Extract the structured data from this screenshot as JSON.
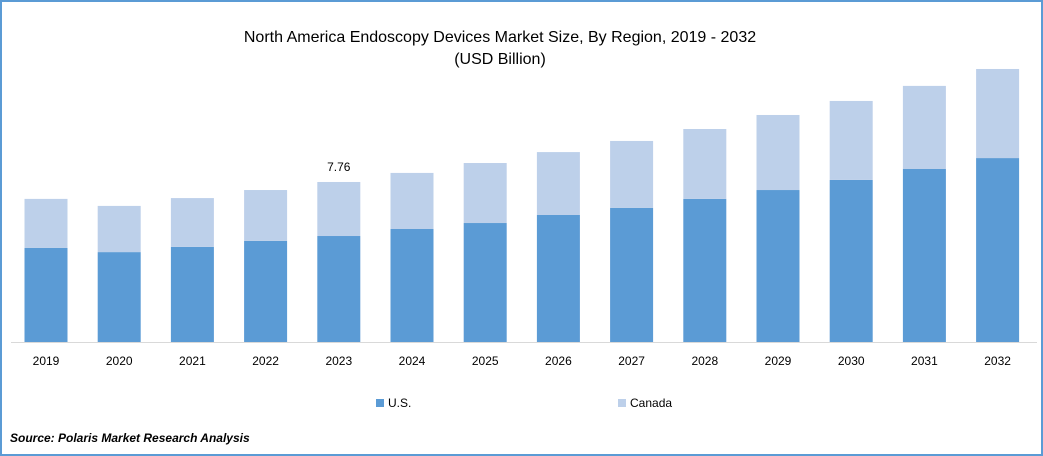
{
  "chart_data": {
    "type": "bar",
    "stacked": true,
    "title": "North America Endoscopy Devices Market Size, By Region, 2019 - 2032",
    "subtitle": "(USD Billion)",
    "xlabel": "",
    "ylabel": "",
    "categories": [
      "2019",
      "2020",
      "2021",
      "2022",
      "2023",
      "2024",
      "2025",
      "2026",
      "2027",
      "2028",
      "2029",
      "2030",
      "2031",
      "2032"
    ],
    "series": [
      {
        "name": "U.S.",
        "color": "#5b9bd5",
        "values": [
          4.56,
          4.36,
          4.61,
          4.9,
          5.14,
          5.48,
          5.77,
          6.16,
          6.5,
          6.94,
          7.37,
          7.86,
          8.39,
          8.92
        ]
      },
      {
        "name": "Canada",
        "color": "#bdd0ea",
        "values": [
          2.38,
          2.24,
          2.37,
          2.47,
          2.62,
          2.72,
          2.91,
          3.05,
          3.25,
          3.39,
          3.64,
          3.83,
          4.03,
          4.32
        ]
      }
    ],
    "annotations": [
      {
        "category": "2023",
        "label": "7.76"
      }
    ],
    "ylim": [
      0,
      13.5
    ],
    "grid": false,
    "legend_position": "bottom",
    "source": "Source: Polaris Market Research Analysis"
  }
}
